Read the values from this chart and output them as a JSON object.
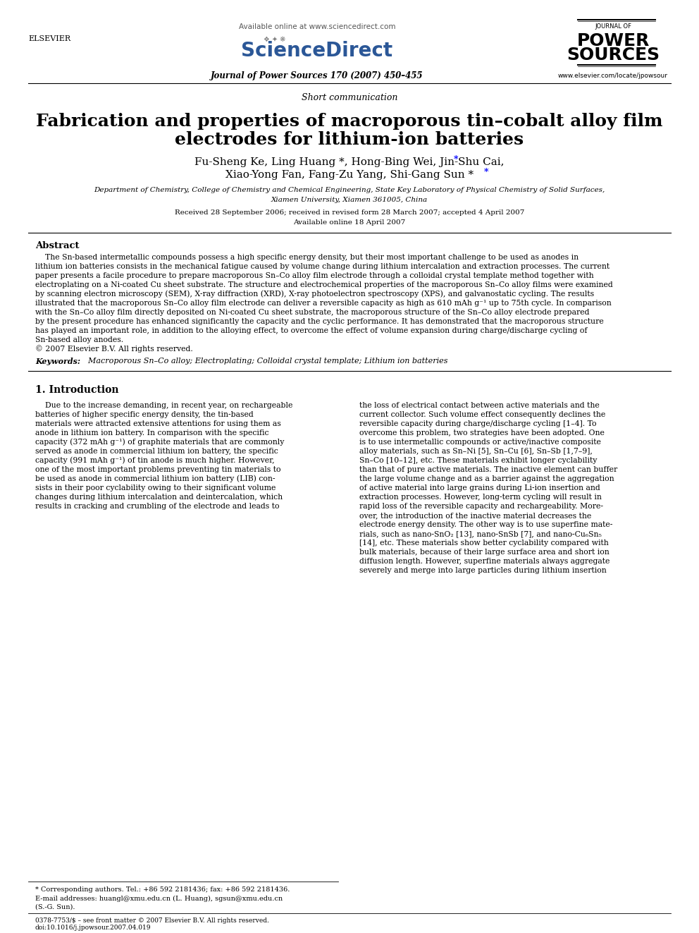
{
  "bg_color": "#ffffff",
  "header_available_online": "Available online at www.sciencedirect.com",
  "header_journal": "Journal of Power Sources 170 (2007) 450–455",
  "header_url": "www.elsevier.com/locate/jpowsour",
  "section_label": "Short communication",
  "title_line1": "Fabrication and properties of macroporous tin–cobalt alloy film",
  "title_line2": "electrodes for lithium-ion batteries",
  "authors": "Fu-Sheng Ke, Ling Huang *, Hong-Bing Wei, Jin-Shu Cai,",
  "authors2": "Xiao-Yong Fan, Fang-Zu Yang, Shi-Gang Sun *",
  "affiliation1": "Department of Chemistry, College of Chemistry and Chemical Engineering, State Key Laboratory of Physical Chemistry of Solid Surfaces,",
  "affiliation2": "Xiamen University, Xiamen 361005, China",
  "received": "Received 28 September 2006; received in revised form 28 March 2007; accepted 4 April 2007",
  "available": "Available online 18 April 2007",
  "abstract_title": "Abstract",
  "abstract_body": "The Sn-based intermetallic compounds possess a high specific energy density, but their most important challenge to be used as anodes in\nlithium ion batteries consists in the mechanical fatigue caused by volume change during lithium intercalation and extraction processes. The current\npaper presents a facile procedure to prepare macroporous Sn–Co alloy film electrode through a colloidal crystal template method together with\nelectroplating on a Ni-coated Cu sheet substrate. The structure and electrochemical properties of the macroporous Sn–Co alloy films were examined\nby scanning electron microscopy (SEM), X-ray diffraction (XRD), X-ray photoelectron spectroscopy (XPS), and galvanostatic cycling. The results\nillustrated that the macroporous Sn–Co alloy film electrode can deliver a reversible capacity as high as 610 mAh g⁻¹ up to 75th cycle. In comparison\nwith the Sn–Co alloy film directly deposited on Ni-coated Cu sheet substrate, the macroporous structure of the Sn–Co alloy electrode prepared\nby the present procedure has enhanced significantly the capacity and the cyclic performance. It has demonstrated that the macroporous structure\nhas played an important role, in addition to the alloying effect, to overcome the effect of volume expansion during charge/discharge cycling of\nSn-based alloy anodes.\n© 2007 Elsevier B.V. All rights reserved.",
  "keywords_label": "Keywords:",
  "keywords": "  Macroporous Sn–Co alloy; Electroplating; Colloidal crystal template; Lithium ion batteries",
  "section1_title": "1. Introduction",
  "intro_col1": "Due to the increase demanding, in recent year, on rechargeable batteries of higher specific energy density, the tin-based\nmaterials were attracted extensive attentions for using them as\nanode in lithium ion battery. In comparison with the specific\ncapacity (372 mAh g⁻¹) of graphite materials that are commonly\nserved as anode in commercial lithium ion battery, the specific\ncapacity (991 mAh g⁻¹) of tin anode is much higher. However,\none of the most important problems preventing tin materials to\nbe used as anode in commercial lithium ion battery (LIB) consists in their poor cyclability owing to their significant volume\nchanges during lithium intercalation and deintercalation, which\nresults in cracking and crumbling of the electrode and leads to",
  "intro_col2": "the loss of electrical contact between active materials and the\ncurrent collector. Such volume effect consequently declines the\nreversible capacity during charge/discharge cycling [1–4]. To\novercome this problem, two strategies have been adopted. One\nis to use intermetallic compounds or active/inactive composite\nalloy materials, such as Sn–Ni [5], Sn–Cu [6], Sn–Sb [1,7–9],\nSn–Co [10–12], etc. These materials exhibit longer cyclability\nthan that of pure active materials. The inactive element can buffer\nthe large volume change and as a barrier against the aggregation\nof active material into large grains during Li-ion insertion and\nextraction processes. However, long-term cycling will result in\nrapid loss of the reversible capacity and rechargeability. Moreover, the introduction of the inactive material decreases the\nelectrode energy density. The other way is to use superfine materials, such as nano-SnO₂ [13], nano-SnSb [7], and nano-Cu₆Sn₅\n[14], etc. These materials show better cyclability compared with\nbulk materials, because of their large surface area and short ion\ndiffusion length. However, superfine materials always aggregate\nseverely and merge into large particles during lithium insertion",
  "footnote1": "* Corresponding authors. Tel.: +86 592 2181436; fax: +86 592 2181436.",
  "footnote2": "E-mail addresses: huangl@xmu.edu.cn (L. Huang), sgsun@xmu.edu.cn",
  "footnote3": "(S.-G. Sun).",
  "footer1": "0378-7753/$ – see front matter © 2007 Elsevier B.V. All rights reserved.",
  "footer2": "doi:10.1016/j.jpowsour.2007.04.019"
}
